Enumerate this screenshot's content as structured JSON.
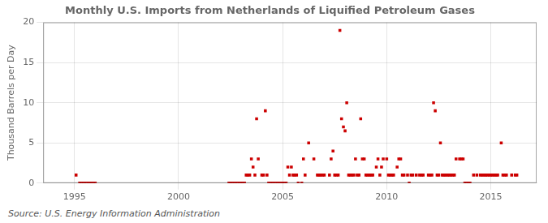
{
  "chart_data": {
    "type": "scatter",
    "title": "Monthly U.S. Imports from Netherlands of Liquified Petroleum Gases",
    "ylabel": "Thousand Barrels per Day",
    "annotations": [
      "Source: U.S. Energy Information Administration"
    ],
    "color": "#cc0000",
    "marker": "square",
    "grid": true,
    "xlim": [
      1993.5,
      2017.2
    ],
    "ylim": [
      0,
      20
    ],
    "xticks": [
      1995,
      2000,
      2005,
      2010,
      2015
    ],
    "yticks": [
      0,
      5,
      10,
      15,
      20
    ],
    "x": [
      1995.08,
      1995.25,
      1995.33,
      1995.42,
      1995.5,
      1995.58,
      1995.67,
      1995.75,
      1995.83,
      1995.92,
      1996.0,
      2002.42,
      2002.5,
      2002.58,
      2002.67,
      2002.75,
      2002.83,
      2002.92,
      2003.0,
      2003.08,
      2003.17,
      2003.25,
      2003.33,
      2003.42,
      2003.5,
      2003.58,
      2003.67,
      2003.75,
      2003.83,
      2004.0,
      2004.08,
      2004.17,
      2004.25,
      2004.33,
      2004.42,
      2004.5,
      2004.58,
      2004.67,
      2004.75,
      2004.83,
      2004.92,
      2005.0,
      2005.08,
      2005.17,
      2005.25,
      2005.33,
      2005.42,
      2005.5,
      2005.58,
      2005.67,
      2005.75,
      2005.92,
      2006.0,
      2006.08,
      2006.25,
      2006.5,
      2006.67,
      2006.75,
      2006.83,
      2006.92,
      2007.0,
      2007.25,
      2007.33,
      2007.42,
      2007.5,
      2007.58,
      2007.67,
      2007.75,
      2007.83,
      2007.92,
      2008.0,
      2008.08,
      2008.17,
      2008.25,
      2008.33,
      2008.42,
      2008.5,
      2008.58,
      2008.67,
      2008.75,
      2008.83,
      2008.92,
      2009.0,
      2009.08,
      2009.17,
      2009.25,
      2009.33,
      2009.5,
      2009.58,
      2009.67,
      2009.75,
      2009.83,
      2010.0,
      2010.08,
      2010.17,
      2010.25,
      2010.33,
      2010.5,
      2010.58,
      2010.67,
      2010.75,
      2010.83,
      2011.0,
      2011.08,
      2011.17,
      2011.25,
      2011.42,
      2011.58,
      2011.67,
      2011.75,
      2012.0,
      2012.08,
      2012.17,
      2012.25,
      2012.33,
      2012.42,
      2012.5,
      2012.58,
      2012.67,
      2012.75,
      2012.83,
      2012.92,
      2013.0,
      2013.08,
      2013.17,
      2013.25,
      2013.33,
      2013.5,
      2013.58,
      2013.67,
      2013.75,
      2013.83,
      2013.92,
      2014.0,
      2014.17,
      2014.33,
      2014.5,
      2014.58,
      2014.67,
      2014.75,
      2014.83,
      2014.92,
      2015.0,
      2015.08,
      2015.17,
      2015.25,
      2015.33,
      2015.5,
      2015.58,
      2015.67,
      2015.75,
      2016.0,
      2016.17,
      2016.25
    ],
    "values": [
      1.0,
      0.0,
      0.0,
      0.0,
      0.0,
      0.0,
      0.0,
      0.0,
      0.0,
      0.0,
      0.0,
      0.0,
      0.0,
      0.0,
      0.0,
      0.0,
      0.0,
      0.0,
      0.0,
      0.0,
      0.0,
      1.0,
      1.0,
      1.0,
      3.0,
      2.0,
      1.0,
      8.0,
      3.0,
      1.0,
      1.0,
      9.0,
      1.0,
      0.0,
      0.0,
      0.0,
      0.0,
      0.0,
      0.0,
      0.0,
      0.0,
      0.0,
      0.0,
      0.0,
      2.0,
      1.0,
      2.0,
      1.0,
      1.0,
      1.0,
      0.0,
      0.0,
      3.0,
      1.0,
      5.0,
      3.0,
      1.0,
      1.0,
      1.0,
      1.0,
      1.0,
      1.0,
      3.0,
      4.0,
      1.0,
      1.0,
      1.0,
      19.0,
      8.0,
      7.0,
      6.5,
      10.0,
      1.0,
      1.0,
      1.0,
      1.0,
      3.0,
      1.0,
      1.0,
      8.0,
      3.0,
      3.0,
      1.0,
      1.0,
      1.0,
      1.0,
      1.0,
      2.0,
      3.0,
      1.0,
      2.0,
      3.0,
      3.0,
      1.0,
      1.0,
      1.0,
      1.0,
      2.0,
      3.0,
      3.0,
      1.0,
      1.0,
      1.0,
      0.0,
      1.0,
      1.0,
      1.0,
      1.0,
      1.0,
      1.0,
      1.0,
      1.0,
      1.0,
      10.0,
      9.0,
      1.0,
      1.0,
      5.0,
      1.0,
      1.0,
      1.0,
      1.0,
      1.0,
      1.0,
      1.0,
      1.0,
      3.0,
      3.0,
      3.0,
      3.0,
      0.0,
      0.0,
      0.0,
      0.0,
      1.0,
      1.0,
      1.0,
      1.0,
      1.0,
      1.0,
      1.0,
      1.0,
      1.0,
      1.0,
      1.0,
      1.0,
      1.0,
      5.0,
      1.0,
      1.0,
      1.0,
      1.0,
      1.0,
      1.0
    ]
  }
}
